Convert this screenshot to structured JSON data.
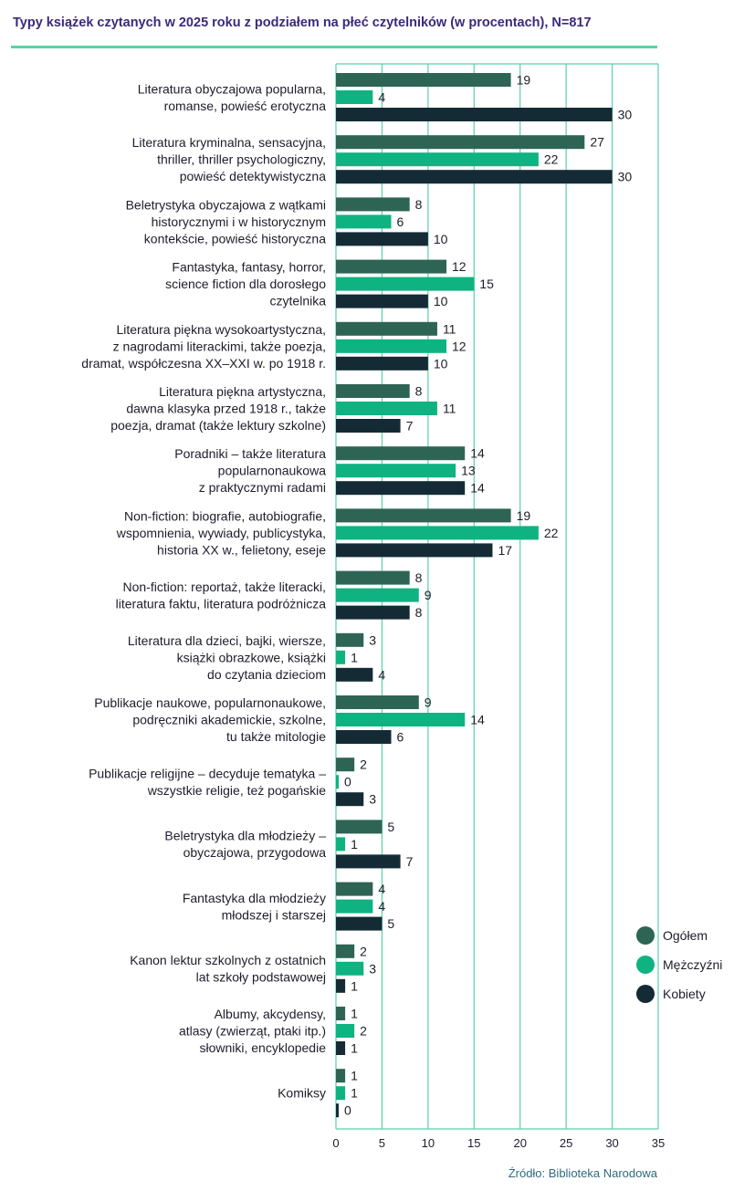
{
  "title": "Typy książek czytanych w 2025 roku z podziałem na płeć czytelników (w procentach), N=817",
  "source": "Źródło: Biblioteka Narodowa",
  "colors": {
    "ogolem": "#2e6454",
    "mezczyzni": "#0eb381",
    "kobiety": "#142b36",
    "grid": "#57d3a4"
  },
  "chart_data": {
    "type": "bar",
    "orientation": "horizontal",
    "title": "Typy książek czytanych w 2025 roku z podziałem na płeć czytelników (w procentach), N=817",
    "xlabel": "",
    "ylabel": "",
    "xlim": [
      0,
      35
    ],
    "xticks": [
      0,
      5,
      10,
      15,
      20,
      25,
      30,
      35
    ],
    "grid": true,
    "legend_position": "right",
    "categories": [
      [
        "Literatura obyczajowa popularna,",
        "romanse, powieść erotyczna"
      ],
      [
        "Literatura kryminalna, sensacyjna,",
        "thriller, thriller psychologiczny,",
        "powieść detektywistyczna"
      ],
      [
        "Beletrystyka obyczajowa z wątkami",
        "historycznymi i w historycznym",
        "kontekście, powieść historyczna"
      ],
      [
        "Fantastyka, fantasy, horror,",
        "science fiction dla dorosłego",
        "czytelnika"
      ],
      [
        "Literatura piękna wysokoartystyczna,",
        "z nagrodami literackimi, także poezja,",
        "dramat, współczesna XX–XXI w. po 1918 r."
      ],
      [
        "Literatura piękna artystyczna,",
        "dawna klasyka przed 1918 r., także",
        "poezja, dramat (także lektury szkolne)"
      ],
      [
        "Poradniki – także literatura",
        "popularnonaukowa",
        "z praktycznymi radami"
      ],
      [
        "Non-fiction: biografie, autobiografie,",
        "wspomnienia, wywiady, publicystyka,",
        "historia XX w., felietony, eseje"
      ],
      [
        "Non-fiction: reportaż, także literacki,",
        "literatura faktu, literatura podróżnicza"
      ],
      [
        "Literatura dla dzieci, bajki, wiersze,",
        "książki obrazkowe, książki",
        "do czytania dzieciom"
      ],
      [
        "Publikacje naukowe, popularnonaukowe,",
        "podręczniki akademickie, szkolne,",
        "tu także mitologie"
      ],
      [
        "Publikacje religijne – decyduje tematyka –",
        "wszystkie religie, też pogańskie"
      ],
      [
        "Beletrystyka dla młodzieży –",
        "obyczajowa, przygodowa"
      ],
      [
        "Fantastyka dla młodzieży",
        "młodszej i starszej"
      ],
      [
        "Kanon lektur szkolnych z ostatnich",
        "lat szkoły podstawowej"
      ],
      [
        "Albumy, akcydensy,",
        "atlasy (zwierząt, ptaki itp.)",
        "słowniki, encyklopedie"
      ],
      [
        "Komiksy"
      ]
    ],
    "series": [
      {
        "name": "Ogółem",
        "values": [
          19,
          27,
          8,
          12,
          11,
          8,
          14,
          19,
          8,
          3,
          9,
          2,
          5,
          4,
          2,
          1,
          1
        ]
      },
      {
        "name": "Mężczyźni",
        "values": [
          4,
          22,
          6,
          15,
          12,
          11,
          13,
          22,
          9,
          1,
          14,
          0,
          1,
          4,
          3,
          2,
          1
        ]
      },
      {
        "name": "Kobiety",
        "values": [
          30,
          30,
          10,
          10,
          10,
          7,
          14,
          17,
          8,
          4,
          6,
          3,
          7,
          5,
          1,
          1,
          0
        ]
      }
    ]
  }
}
